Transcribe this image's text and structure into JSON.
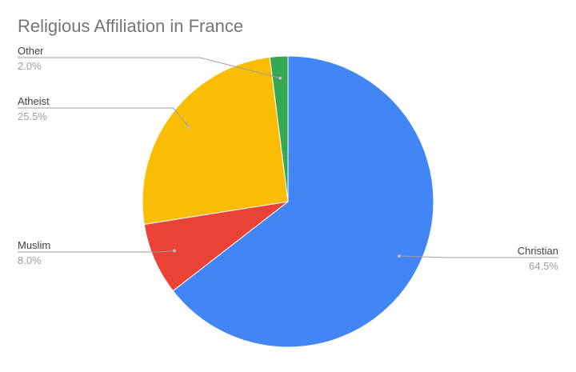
{
  "chart_data": {
    "type": "pie",
    "title": "Religious Affiliation in France",
    "slices": [
      {
        "label": "Christian",
        "value": 64.5,
        "display": "64.5%",
        "color": "#4285F4"
      },
      {
        "label": "Muslim",
        "value": 8.0,
        "display": "8.0%",
        "color": "#EA4335"
      },
      {
        "label": "Atheist",
        "value": 25.5,
        "display": "25.5%",
        "color": "#FBBC04"
      },
      {
        "label": "Other",
        "value": 2.0,
        "display": "2.0%",
        "color": "#34A853"
      }
    ],
    "start_angle_deg": 0,
    "direction": "clockwise",
    "legend": "none",
    "label_style": "leader-lines"
  }
}
